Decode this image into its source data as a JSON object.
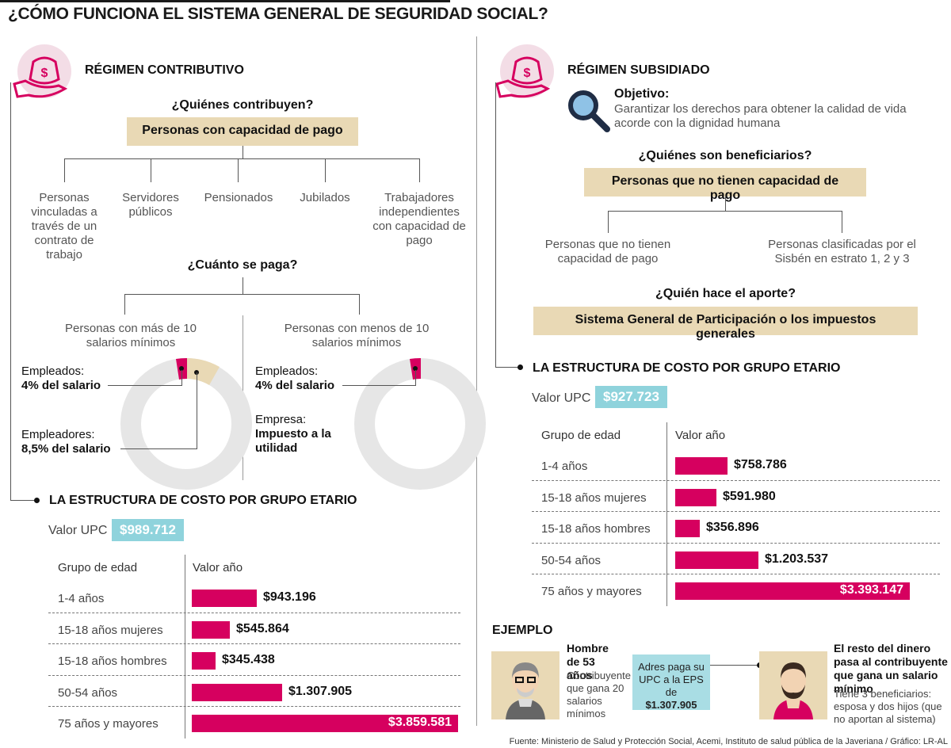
{
  "title": "¿CÓMO FUNCIONA EL SISTEMA GENERAL DE SEGURIDAD SOCIAL?",
  "colors": {
    "accent": "#d6005f",
    "beige": "#e9d9b5",
    "teal": "#8fd3dc",
    "donut": "#e6e6e6"
  },
  "left": {
    "heading": "RÉGIMEN CONTRIBUTIVO",
    "icon": "money-bag-hand-icon",
    "q1": "¿Quiénes contribuyen?",
    "box1": "Personas con capacidad de pago",
    "contributors": [
      "Personas vinculadas a través de un contrato de trabajo",
      "Servidores públicos",
      "Pensionados",
      "Jubilados",
      "Trabajadores independientes con capacidad de pago"
    ],
    "q2": "¿Cuánto se paga?",
    "groupA": {
      "title": "Personas con más de 10 salarios mínimos",
      "label1a": "Empleados:",
      "label1b": "4% del salario",
      "label2a": "Empleadores:",
      "label2b": "8,5% del salario",
      "share_employee_pct": 4,
      "share_employer_pct": 8.5
    },
    "groupB": {
      "title": "Personas con menos de 10 salarios mínimos",
      "label1a": "Empleados:",
      "label1b": "4% del salario",
      "label2a": "Empresa:",
      "label2b": "Impuesto a la utilidad",
      "share_employee_pct": 4
    },
    "struct_heading": "LA ESTRUCTURA DE COSTO POR GRUPO ETARIO",
    "upc_label": "Valor UPC",
    "upc_value": "$989.712",
    "col1": "Grupo de edad",
    "col2": "Valor año"
  },
  "right": {
    "heading": "RÉGIMEN SUBSIDIADO",
    "icon": "money-bag-hand-icon",
    "obj_title": "Objetivo:",
    "obj_text": "Garantizar los derechos para obtener la calidad de vida acorde con la dignidad humana",
    "q1": "¿Quiénes son beneficiarios?",
    "box1": "Personas que no tienen capacidad de pago",
    "beneficiaries": [
      "Personas que no tienen capacidad de pago",
      "Personas clasificadas por el Sisbén en estrato 1, 2 y 3"
    ],
    "q2": "¿Quién hace el aporte?",
    "box2": "Sistema General de Participación o los impuestos generales",
    "struct_heading": "LA ESTRUCTURA DE COSTO POR GRUPO ETARIO",
    "upc_label": "Valor UPC",
    "upc_value": "$927.723",
    "col1": "Grupo de edad",
    "col2": "Valor año"
  },
  "example": {
    "heading": "EJEMPLO",
    "man_title": "Hombre de 53 años",
    "man_text": "Contribuyente que gana 20 salarios mínimos",
    "box_text": "Adres paga su UPC a la EPS de",
    "box_value": "$1.307.905",
    "rest_title": "El resto del dinero pasa al contribuyente que gana un salario mínimo",
    "rest_text": "Tiene 3 beneficiarios: esposa y dos hijos (que no aportan al sistema)"
  },
  "source": "Fuente: Ministerio de Salud y Protección Social, Acemi, Instituto de salud pública de la Javeriana / Gráfico: LR-AL",
  "chart_data": [
    {
      "type": "bar",
      "title": "LA ESTRUCTURA DE COSTO POR GRUPO ETARIO",
      "categories": [
        "1-4 años",
        "15-18 años mujeres",
        "15-18 años hombres",
        "50-54 años",
        "75 años y mayores"
      ],
      "values": [
        943196,
        545864,
        345438,
        1307905,
        3859581
      ],
      "labels": [
        "$943.196",
        "$545.864",
        "$345.438",
        "$1.307.905",
        "$3.859.581"
      ],
      "xlabel": "Valor año",
      "ylabel": "Grupo de edad"
    },
    {
      "type": "bar",
      "title": "LA ESTRUCTURA DE COSTO POR GRUPO ETARIO",
      "categories": [
        "1-4 años",
        "15-18 años mujeres",
        "15-18 años hombres",
        "50-54 años",
        "75 años y mayores"
      ],
      "values": [
        758786,
        591980,
        356896,
        1203537,
        3393147
      ],
      "labels": [
        "$758.786",
        "$591.980",
        "$356.896",
        "$1.203.537",
        "$3.393.147"
      ],
      "xlabel": "Valor año",
      "ylabel": "Grupo de edad"
    }
  ]
}
